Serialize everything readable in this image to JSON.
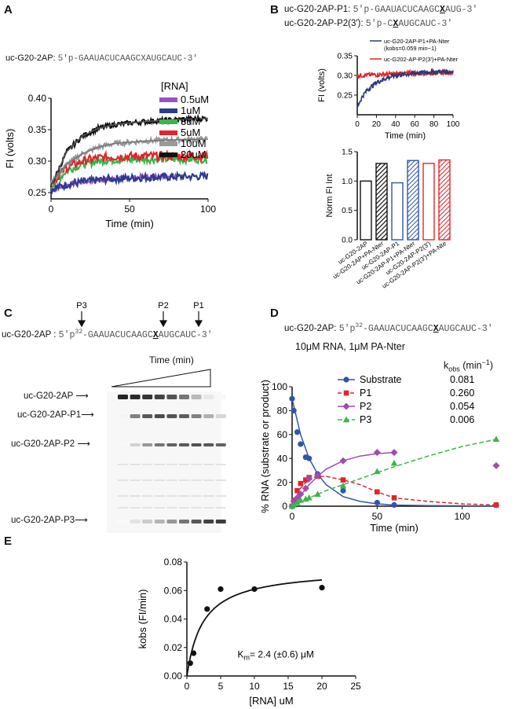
{
  "colors": {
    "purple": "#9b4fc4",
    "blue": "#2b3b8f",
    "green": "#3bb54a",
    "red": "#e0252b",
    "gray": "#999999",
    "black": "#111111",
    "navy": "#2b3a7a",
    "dblue": "#3056a8",
    "magenta": "#a04ab2"
  },
  "panels": {
    "A": "A",
    "B": "B",
    "C": "C",
    "D": "D",
    "E": "E"
  },
  "a": {
    "seq_name": "uc-G20-2AP:",
    "seq_pre": "5′p-GAAUACUCAAGC",
    "seq_x": "X",
    "seq_post": "AUGCAUC-3′"
  },
  "b": {
    "seq1_name": "uc-G20-2AP-P1:",
    "seq1_pre": "5′p-GAAUACUCAAGC",
    "seq1_x": "X",
    "seq1_post": "AUG-3′",
    "seq2_name": "uc-G20-2AP-P2(3′):",
    "seq2_pre": "5′p-C",
    "seq2_x": "X",
    "seq2_post": "AUGCAUC-3′"
  },
  "c": {
    "arrows": [
      "P3",
      "P2",
      "P1"
    ],
    "seq_name": "uc-G20-2AP  :",
    "seq_pre": "5′p",
    "seq_sup": "32",
    "seq_mid": "-GAAUACUCAAGC",
    "seq_x": "X",
    "seq_post": "AUGCAUC-3′",
    "time_label": "Time (min)",
    "bands": [
      "uc-G20-2AP",
      "uc-G20-2AP-P1",
      "uc-G20-2AP-P2",
      "uc-G20-2AP-P3"
    ]
  },
  "d": {
    "seq_name": "uc-G20-2AP:",
    "seq_pre": "5′p",
    "seq_sup": "32",
    "seq_mid": "-GAAUACUCAAGC",
    "seq_x": "X",
    "seq_post": "AUGCAUC-3′",
    "condition": "10μM RNA, 1μM PA-Nter",
    "kobs_header": "k",
    "kobs_sub": "obs",
    "kobs_unit": " (min",
    "kobs_exp": "−1",
    "kobs_close": ")"
  },
  "chart_data": [
    {
      "id": "A",
      "type": "line",
      "xlabel": "Time (min)",
      "ylabel": "FI (volts)",
      "xlim": [
        0,
        100
      ],
      "ylim": [
        0.24,
        0.4
      ],
      "xticks": [
        0,
        50,
        100
      ],
      "yticks": [
        0.25,
        0.3,
        0.35,
        0.4
      ],
      "legend_title": "[RNA]",
      "series": [
        {
          "name": "0.5uM",
          "color": "#9b4fc4",
          "x": [
            0,
            10,
            20,
            30,
            40,
            60,
            80
          ],
          "y": [
            0.255,
            0.262,
            0.267,
            0.27,
            0.272,
            0.275,
            0.277
          ]
        },
        {
          "name": "1uM",
          "color": "#2b3b8f",
          "x": [
            0,
            10,
            20,
            30,
            40,
            60,
            80,
            100
          ],
          "y": [
            0.255,
            0.263,
            0.267,
            0.27,
            0.272,
            0.274,
            0.275,
            0.276
          ]
        },
        {
          "name": "3uM",
          "color": "#3bb54a",
          "x": [
            0,
            10,
            20,
            30,
            40,
            60,
            80,
            100
          ],
          "y": [
            0.26,
            0.285,
            0.295,
            0.3,
            0.302,
            0.303,
            0.303,
            0.303
          ]
        },
        {
          "name": "5uM",
          "color": "#e0252b",
          "x": [
            0,
            10,
            20,
            30,
            40,
            60,
            80,
            100
          ],
          "y": [
            0.265,
            0.29,
            0.3,
            0.305,
            0.307,
            0.308,
            0.308,
            0.308
          ]
        },
        {
          "name": "10uM",
          "color": "#999999",
          "x": [
            0,
            10,
            20,
            30,
            40,
            60,
            80,
            100
          ],
          "y": [
            0.265,
            0.295,
            0.312,
            0.322,
            0.328,
            0.332,
            0.334,
            0.335
          ]
        },
        {
          "name": "20uM",
          "color": "#111111",
          "x": [
            0,
            10,
            20,
            30,
            40,
            60,
            80,
            100
          ],
          "y": [
            0.26,
            0.315,
            0.34,
            0.352,
            0.358,
            0.363,
            0.366,
            0.368
          ]
        }
      ]
    },
    {
      "id": "B1",
      "type": "line",
      "xlabel": "Time (min)",
      "ylabel": "FI (volts)",
      "xlim": [
        0,
        100
      ],
      "ylim": [
        0.2,
        0.35
      ],
      "xticks": [
        0,
        20,
        40,
        60,
        80,
        100
      ],
      "yticks": [
        0.25,
        0.3,
        0.35
      ],
      "series": [
        {
          "name": "uc-G20-2AP-P1+PA-Nter",
          "note": "(kobs=0.059 min−1)",
          "color": "#2b3a7a",
          "x": [
            0,
            5,
            10,
            20,
            30,
            40,
            60,
            80,
            100
          ],
          "y": [
            0.22,
            0.245,
            0.262,
            0.282,
            0.293,
            0.3,
            0.306,
            0.309,
            0.31
          ]
        },
        {
          "name": "uc-G202-AP-P2(3′)+PA-Nter",
          "color": "#e0252b",
          "x": [
            0,
            20,
            40,
            60,
            80,
            100
          ],
          "y": [
            0.3,
            0.302,
            0.304,
            0.306,
            0.307,
            0.308
          ]
        }
      ]
    },
    {
      "id": "B2",
      "type": "bar",
      "ylabel": "Norm FI Int",
      "ylim": [
        0,
        1.5
      ],
      "yticks": [
        0.0,
        0.5,
        1.0,
        1.5
      ],
      "categories": [
        "uc-G20-2AP",
        "uc-G20-2AP+PA-Nter",
        "uc-G20-2AP-P1",
        "uc-G20-2AP-P1+PA-Nter",
        "uc-G20-2AP-P2(3′)",
        "uc-G20-2AP-P2(3′)+PA-Nte"
      ],
      "values": [
        1.0,
        1.3,
        0.97,
        1.35,
        1.3,
        1.36
      ]
    },
    {
      "id": "D",
      "type": "scatter",
      "xlabel": "Time (min)",
      "ylabel": "% RNA (substrate or product)",
      "xlim": [
        0,
        120
      ],
      "ylim": [
        0,
        100
      ],
      "xticks": [
        0,
        50,
        100
      ],
      "yticks": [
        0,
        20,
        40,
        60,
        80,
        100
      ],
      "series": [
        {
          "name": "Substrate",
          "kobs": "0.081",
          "color": "#3056a8",
          "marker": "circle",
          "x": [
            0,
            1,
            3,
            5,
            8,
            10,
            15,
            30,
            50,
            60,
            120
          ],
          "y": [
            90,
            80,
            62,
            52,
            41,
            40,
            27,
            13,
            3,
            1,
            1
          ],
          "fit_x": [
            0,
            5,
            10,
            15,
            20,
            30,
            40,
            50,
            60,
            80,
            100,
            120
          ],
          "fit_y": [
            90,
            60,
            40,
            27,
            18,
            8,
            4,
            2,
            1,
            0.5,
            0.3,
            0.2
          ]
        },
        {
          "name": "P1",
          "kobs": "0.260",
          "color": "#e0252b",
          "marker": "square",
          "x": [
            0,
            1,
            3,
            5,
            8,
            10,
            15,
            30,
            50,
            60,
            120
          ],
          "y": [
            0,
            5,
            13,
            19,
            22,
            24,
            25,
            22,
            12,
            7,
            1
          ],
          "fit_x": [
            0,
            5,
            10,
            15,
            20,
            30,
            40,
            50,
            60,
            80,
            100,
            120
          ],
          "fit_y": [
            0,
            15,
            23,
            25,
            25,
            22,
            18,
            12,
            7,
            4,
            2,
            1
          ]
        },
        {
          "name": "P2",
          "kobs": "0.054",
          "color": "#a04ab2",
          "marker": "diamond",
          "x": [
            0,
            1,
            3,
            5,
            8,
            10,
            15,
            30,
            50,
            60,
            120
          ],
          "y": [
            0,
            4,
            7,
            10,
            15,
            23,
            26,
            38,
            45,
            45,
            34
          ],
          "fit_x": [
            0,
            5,
            10,
            15,
            20,
            30,
            40,
            50,
            60
          ],
          "fit_y": [
            0,
            9,
            18,
            25,
            31,
            38,
            42,
            44,
            45
          ]
        },
        {
          "name": "P3",
          "kobs": "0.006",
          "color": "#3bb54a",
          "marker": "triangle",
          "x": [
            0,
            1,
            3,
            5,
            8,
            10,
            15,
            30,
            50,
            60,
            120
          ],
          "y": [
            0,
            1,
            3,
            5,
            6,
            7,
            10,
            17,
            29,
            36,
            56
          ],
          "fit_x": [
            0,
            10,
            20,
            30,
            40,
            50,
            60,
            80,
            100,
            120
          ],
          "fit_y": [
            0,
            7,
            13,
            18,
            23,
            28,
            33,
            42,
            50,
            56
          ]
        }
      ]
    },
    {
      "id": "E",
      "type": "scatter",
      "xlabel": "[RNA] uM",
      "ylabel": "kobs (FI/min)",
      "xlim": [
        0,
        25
      ],
      "ylim": [
        0,
        0.08
      ],
      "xticks": [
        0,
        5,
        10,
        15,
        20,
        25
      ],
      "yticks": [
        0.0,
        0.02,
        0.04,
        0.06,
        0.08
      ],
      "annotation": "K",
      "annotation_sub": "m",
      "annotation_rest": "= 2.4 (±0.6) μM",
      "points": {
        "x": [
          0.5,
          1,
          3,
          5,
          10,
          20
        ],
        "y": [
          0.009,
          0.016,
          0.047,
          0.061,
          0.061,
          0.062
        ]
      },
      "fit": {
        "vmax": 0.0755,
        "km": 2.4
      }
    }
  ]
}
